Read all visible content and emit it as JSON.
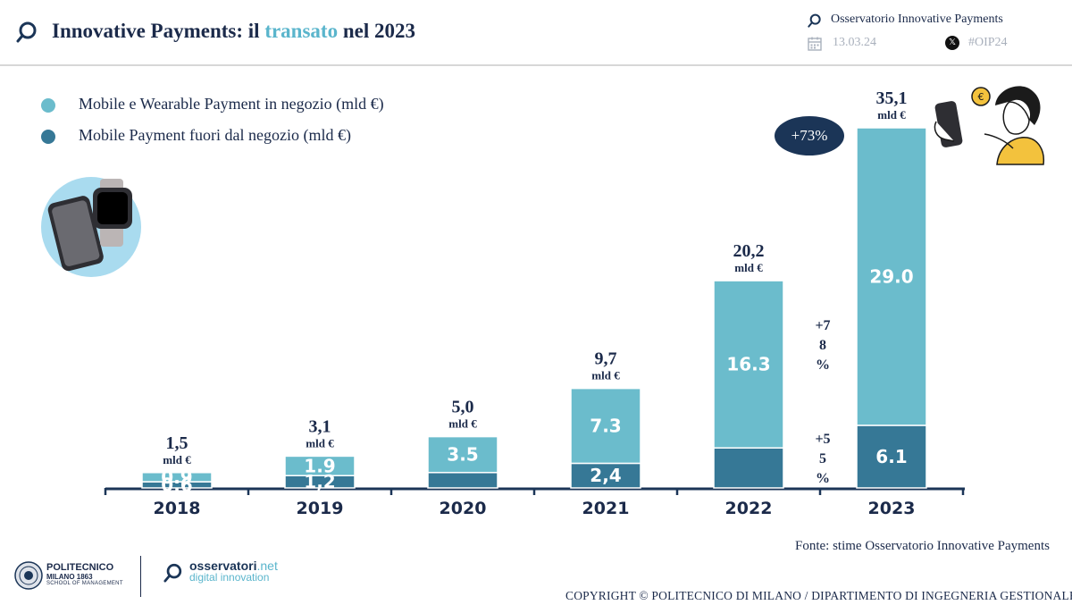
{
  "header": {
    "title_prefix": "Innovative Payments: il ",
    "title_accent": "transato",
    "title_suffix": " nel 2023",
    "observatory": "Osservatorio Innovative Payments",
    "date": "13.03.24",
    "hashtag": "#OIP24",
    "x_glyph": "𝕏"
  },
  "colors": {
    "light_series": "#6bbccc",
    "dark_series": "#367896",
    "navy": "#1b3557",
    "axis": "#1b3557"
  },
  "legend": [
    {
      "label": "Mobile e Wearable Payment in negozio (mld €)",
      "color": "#6bbccc"
    },
    {
      "label": "Mobile Payment fuori dal negozio (mld €)",
      "color": "#367896"
    }
  ],
  "highlight": {
    "label": "+73%"
  },
  "growth_labels": {
    "light": [
      "+7",
      "8",
      "%"
    ],
    "dark": [
      "+5",
      "5",
      "%"
    ]
  },
  "chart_data": {
    "type": "bar",
    "stacked": true,
    "categories": [
      "2018",
      "2019",
      "2020",
      "2021",
      "2022",
      "2023"
    ],
    "series": [
      {
        "name": "Mobile Payment fuori dal negozio (mld €)",
        "values": [
          0.6,
          1.2,
          1.5,
          2.4,
          3.9,
          6.1
        ],
        "data_labels": [
          "0.6",
          "1,2",
          "",
          "2,4",
          "",
          "6.1"
        ]
      },
      {
        "name": "Mobile e Wearable Payment in negozio (mld €)",
        "values": [
          0.9,
          1.9,
          3.5,
          7.3,
          16.3,
          29.0
        ],
        "data_labels": [
          "0.9",
          "1.9",
          "3.5",
          "7.3",
          "16.3",
          "29.0"
        ]
      }
    ],
    "totals": [
      "1,5",
      "3,1",
      "5,0",
      "9,7",
      "20,2",
      "35,1"
    ],
    "total_unit": "mld €",
    "ylim": [
      0,
      35.1
    ]
  },
  "footer": {
    "source": "Fonte: stime Osservatorio Innovative Payments",
    "copyright": "COPYRIGHT © POLITECNICO DI MILANO / DIPARTIMENTO DI INGEGNERIA GESTIONALE",
    "polimi_name": "POLITECNICO",
    "polimi_city": "MILANO 1863",
    "polimi_school": "SCHOOL OF MANAGEMENT",
    "osserv_name": "osservatori",
    "osserv_tld": ".net",
    "osserv_tagline": "digital innovation"
  }
}
